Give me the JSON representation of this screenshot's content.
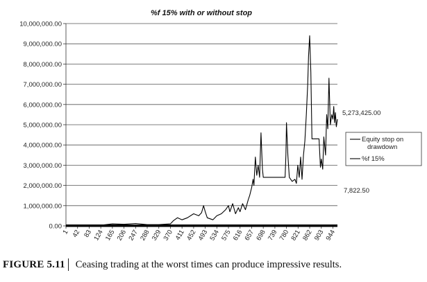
{
  "chart_data": {
    "type": "line",
    "title": "%f 15% with or without stop",
    "xlabel": "",
    "ylabel": "",
    "ylim": [
      0,
      10000000
    ],
    "y_ticks": [
      "0.00",
      "1,000,000.00",
      "2,000,000.00",
      "3,000,000.00",
      "4,000,000.00",
      "5,000,000.00",
      "6,000,000.00",
      "7,000,000.00",
      "8,000,000.00",
      "9,000,000.00",
      "10,000,000.00"
    ],
    "x_ticks": [
      "1",
      "42",
      "83",
      "124",
      "165",
      "206",
      "247",
      "288",
      "329",
      "370",
      "411",
      "452",
      "493",
      "534",
      "575",
      "616",
      "657",
      "698",
      "739",
      "780",
      "821",
      "862",
      "903",
      "944"
    ],
    "xlim": [
      1,
      960
    ],
    "grid": true,
    "legend_position": "right",
    "annotations": [
      {
        "text": "5,273,425.00",
        "value": 5273425
      },
      {
        "text": "7,822.50",
        "value": 7822.5
      }
    ],
    "series": [
      {
        "name": "Equity stop on drawdown",
        "color": "#000000",
        "x": [
          1,
          40,
          83,
          124,
          165,
          206,
          247,
          288,
          329,
          370,
          380,
          395,
          411,
          430,
          452,
          470,
          480,
          487,
          493,
          500,
          520,
          534,
          550,
          565,
          575,
          580,
          590,
          600,
          610,
          616,
          625,
          635,
          645,
          650,
          657,
          662,
          665,
          670,
          675,
          680,
          685,
          690,
          695,
          698,
          705,
          720,
          739,
          760,
          770,
          775,
          778,
          780,
          785,
          790,
          800,
          810,
          815,
          820,
          825,
          830,
          835,
          840,
          845,
          850,
          855,
          858,
          862,
          866,
          870,
          875,
          880,
          885,
          890,
          895,
          900,
          903,
          908,
          912,
          918,
          922,
          926,
          930,
          935,
          940,
          944,
          947,
          950,
          953,
          956,
          960
        ],
        "values": [
          20000,
          40000,
          30000,
          30000,
          100000,
          80000,
          120000,
          60000,
          60000,
          100000,
          250000,
          400000,
          300000,
          400000,
          600000,
          500000,
          650000,
          1000000,
          700000,
          400000,
          300000,
          500000,
          600000,
          800000,
          1000000,
          700000,
          1100000,
          600000,
          900000,
          700000,
          1100000,
          800000,
          1300000,
          1500000,
          1900000,
          2300000,
          2000000,
          3400000,
          2500000,
          3000000,
          2400000,
          4600000,
          2800000,
          2400000,
          2400000,
          2400000,
          2400000,
          2400000,
          2400000,
          2400000,
          3500000,
          5100000,
          3500000,
          2400000,
          2200000,
          2300000,
          2100000,
          3000000,
          2400000,
          3400000,
          2300000,
          3500000,
          4200000,
          5500000,
          7000000,
          8400000,
          9400000,
          7600000,
          4300000,
          4300000,
          4300000,
          4300000,
          4300000,
          4300000,
          2900000,
          3300000,
          2800000,
          4400000,
          3500000,
          5500000,
          4800000,
          7300000,
          5000000,
          5500000,
          5273425,
          5900000,
          5100000,
          5600000,
          4900000,
          5273425
        ]
      },
      {
        "name": "%f 15%",
        "color": "#000000",
        "x": [
          1,
          960
        ],
        "values": [
          7822.5,
          7822.5
        ]
      }
    ]
  },
  "caption": {
    "label": "FIGURE 5.11",
    "text": "Ceasing trading at the worst times can produce impressive results."
  }
}
